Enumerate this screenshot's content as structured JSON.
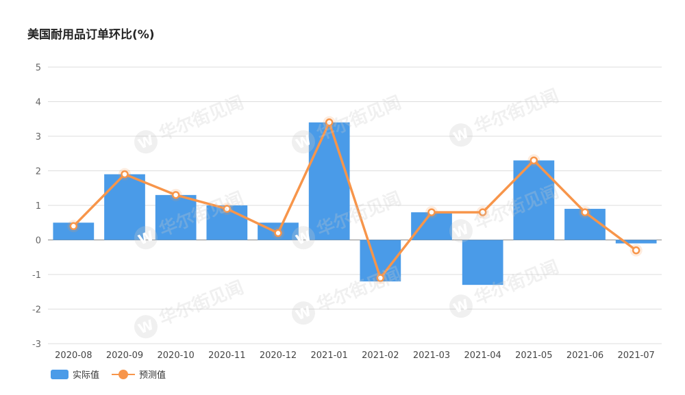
{
  "chart_data": {
    "type": "bar",
    "title": "美国耐用品订单环比(%)",
    "categories": [
      "2020-08",
      "2020-09",
      "2020-10",
      "2020-11",
      "2020-12",
      "2021-01",
      "2021-02",
      "2021-03",
      "2021-04",
      "2021-05",
      "2021-06",
      "2021-07"
    ],
    "series": [
      {
        "name": "实际值",
        "type": "bar",
        "color": "#4a9be8",
        "values": [
          0.5,
          1.9,
          1.3,
          1.0,
          0.5,
          3.4,
          -1.2,
          0.8,
          -1.3,
          2.3,
          0.9,
          -0.1
        ]
      },
      {
        "name": "预测值",
        "type": "line",
        "color": "#f7954a",
        "values": [
          0.4,
          1.9,
          1.3,
          0.9,
          0.2,
          3.4,
          -1.1,
          0.8,
          0.8,
          2.3,
          0.8,
          -0.3
        ]
      }
    ],
    "ylim": [
      -3,
      5
    ],
    "yticks": [
      "5",
      "4",
      "3",
      "2",
      "1",
      "0",
      "-1",
      "-2",
      "-3"
    ],
    "xlabel": "",
    "ylabel": "",
    "grid": true,
    "legend_position": "bottom-left"
  },
  "watermark": {
    "text": "华尔街见闻",
    "logo_glyph": "W"
  },
  "colors": {
    "bar": "#4a9be8",
    "line": "#f7954a",
    "grid": "#dddddd",
    "axis": "#666666"
  }
}
